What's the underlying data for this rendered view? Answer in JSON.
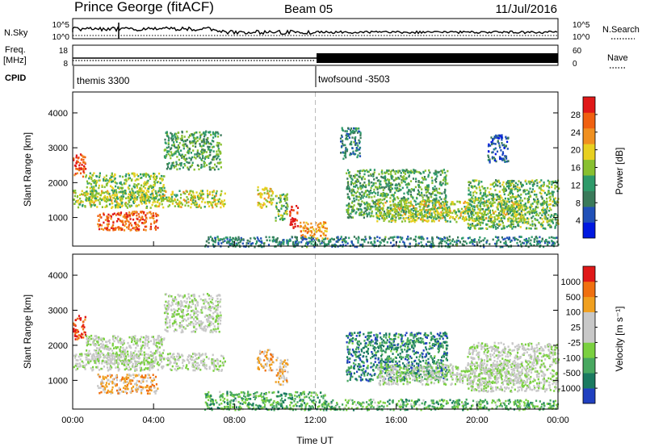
{
  "header": {
    "station": "Prince George (fitACF)",
    "beam": "Beam 05",
    "date": "11/Jul/2016"
  },
  "strip_labels": {
    "nsky": "N.Sky",
    "nsky_ticks": [
      "10^5",
      "10^0"
    ],
    "nsearch": "N.Search",
    "nsearch_ticks": [
      "10^5",
      "10^0"
    ],
    "freq_top": "Freq.",
    "freq_unit": "[MHz]",
    "freq_ticks": [
      "18",
      "8"
    ],
    "nave": "Nave",
    "nave_ticks": [
      "60",
      "0"
    ],
    "cpid": "CPID",
    "cpid_programs": [
      "themis 3300",
      "twofsound -3503"
    ]
  },
  "x_axis": {
    "label": "Time UT",
    "ticks": [
      "00:00",
      "04:00",
      "08:00",
      "12:00",
      "16:00",
      "20:00",
      "00:00"
    ]
  },
  "chart_data": [
    {
      "type": "heatmap",
      "parameter": "power",
      "ylabel": "Slant Range [km]",
      "yticks": [
        1000,
        2000,
        3000,
        4000
      ],
      "ylim": [
        180,
        4600
      ],
      "xlim_hours": [
        0,
        24
      ],
      "colorbar_label": "Power [dB]",
      "colorbar_ticks": [
        "28",
        "24",
        "20",
        "16",
        "12",
        "8",
        "4"
      ],
      "colorbar_colors": [
        "#0018e0",
        "#2050b8",
        "#3a7a5a",
        "#2e9a6a",
        "#88c030",
        "#e8d020",
        "#f09020",
        "#f06010",
        "#e01818"
      ],
      "mode_change_hour": 12,
      "regions": [
        {
          "t": [
            0.0,
            0.6
          ],
          "r": [
            2200,
            2900
          ],
          "level": 0.85
        },
        {
          "t": [
            0.0,
            7.5
          ],
          "r": [
            1300,
            1800
          ],
          "level": 0.55
        },
        {
          "t": [
            0.6,
            4.5
          ],
          "r": [
            1500,
            2300
          ],
          "level": 0.5
        },
        {
          "t": [
            1.2,
            4.2
          ],
          "r": [
            650,
            1200
          ],
          "level": 0.82
        },
        {
          "t": [
            4.5,
            7.3
          ],
          "r": [
            2400,
            3500
          ],
          "level": 0.4
        },
        {
          "t": [
            9.1,
            9.9
          ],
          "r": [
            1300,
            1900
          ],
          "level": 0.6
        },
        {
          "t": [
            10.0,
            10.6
          ],
          "r": [
            900,
            1700
          ],
          "level": 0.45
        },
        {
          "t": [
            10.7,
            11.1
          ],
          "r": [
            700,
            1400
          ],
          "level": 0.95
        },
        {
          "t": [
            11.2,
            12.6
          ],
          "r": [
            400,
            900
          ],
          "level": 0.7
        },
        {
          "t": [
            6.5,
            24.0
          ],
          "r": [
            180,
            480
          ],
          "level": 0.3
        },
        {
          "t": [
            13.5,
            18.5
          ],
          "r": [
            1000,
            2400
          ],
          "level": 0.4
        },
        {
          "t": [
            15.0,
            22.5
          ],
          "r": [
            900,
            1500
          ],
          "level": 0.55
        },
        {
          "t": [
            19.5,
            24.0
          ],
          "r": [
            700,
            2100
          ],
          "level": 0.45
        },
        {
          "t": [
            13.2,
            14.2
          ],
          "r": [
            2700,
            3600
          ],
          "level": 0.3
        },
        {
          "t": [
            20.5,
            21.5
          ],
          "r": [
            2600,
            3400
          ],
          "level": 0.2
        }
      ]
    },
    {
      "type": "heatmap",
      "parameter": "velocity",
      "ylabel": "Slant Range [km]",
      "yticks": [
        1000,
        2000,
        3000,
        4000
      ],
      "ylim": [
        180,
        4600
      ],
      "xlim_hours": [
        0,
        24
      ],
      "colorbar_label": "Velocity [m s⁻¹]",
      "colorbar_ticks": [
        "1000",
        "500",
        "100",
        "25",
        "-25",
        "-100",
        "-500",
        "-1000"
      ],
      "colorbar_colors": [
        "#2040c0",
        "#1a7a60",
        "#48a860",
        "#7ad040",
        "#c8c8c8",
        "#c8c8c8",
        "#f0a020",
        "#f07010",
        "#e01818"
      ],
      "mode_change_hour": 12,
      "regions": [
        {
          "t": [
            0.0,
            0.6
          ],
          "r": [
            2200,
            2900
          ],
          "level": 0.92
        },
        {
          "t": [
            0.0,
            7.5
          ],
          "r": [
            1300,
            1800
          ],
          "level": 0.5
        },
        {
          "t": [
            0.6,
            4.5
          ],
          "r": [
            1500,
            2300
          ],
          "level": 0.5
        },
        {
          "t": [
            1.2,
            4.2
          ],
          "r": [
            650,
            1200
          ],
          "level": 0.72
        },
        {
          "t": [
            4.5,
            7.3
          ],
          "r": [
            2400,
            3500
          ],
          "level": 0.5
        },
        {
          "t": [
            9.1,
            9.9
          ],
          "r": [
            1300,
            1900
          ],
          "level": 0.68
        },
        {
          "t": [
            10.0,
            10.6
          ],
          "r": [
            900,
            1700
          ],
          "level": 0.66
        },
        {
          "t": [
            6.5,
            12.5
          ],
          "r": [
            180,
            700
          ],
          "level": 0.3
        },
        {
          "t": [
            12.5,
            24.0
          ],
          "r": [
            180,
            480
          ],
          "level": 0.32
        },
        {
          "t": [
            13.5,
            18.5
          ],
          "r": [
            1000,
            2400
          ],
          "level": 0.2
        },
        {
          "t": [
            15.0,
            22.5
          ],
          "r": [
            900,
            1500
          ],
          "level": 0.48
        },
        {
          "t": [
            19.5,
            24.0
          ],
          "r": [
            700,
            2100
          ],
          "level": 0.5
        }
      ]
    }
  ]
}
